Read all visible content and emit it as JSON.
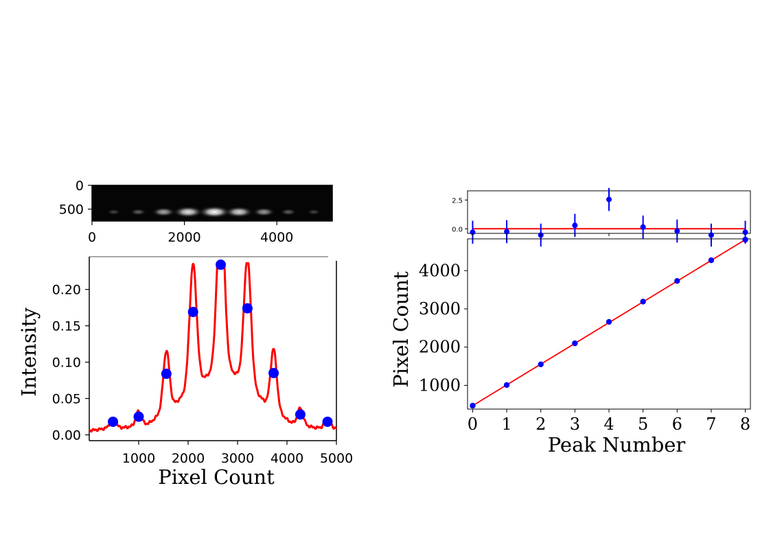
{
  "chart_data": [
    {
      "type": "image",
      "panel": "detector-image",
      "xticks": [
        "0",
        "2000",
        "4000"
      ],
      "yticks": [
        "0",
        "500"
      ],
      "xlim": [
        0,
        5200
      ],
      "ylim": [
        0,
        750
      ],
      "spots": [
        {
          "x": 470,
          "brightness": 0.25
        },
        {
          "x": 1000,
          "brightness": 0.35
        },
        {
          "x": 1550,
          "brightness": 0.65
        },
        {
          "x": 2080,
          "brightness": 0.9
        },
        {
          "x": 2650,
          "brightness": 1.0
        },
        {
          "x": 3180,
          "brightness": 0.85
        },
        {
          "x": 3720,
          "brightness": 0.6
        },
        {
          "x": 4250,
          "brightness": 0.35
        },
        {
          "x": 4800,
          "brightness": 0.25
        }
      ]
    },
    {
      "type": "line",
      "panel": "intensity-profile",
      "xlabel": "Pixel Count",
      "ylabel": "Intensity",
      "xlim": [
        0,
        5000
      ],
      "ylim": [
        -0.008,
        0.245
      ],
      "xticks": [
        "1000",
        "2000",
        "3000",
        "4000",
        "5000"
      ],
      "yticks": [
        "0.00",
        "0.05",
        "0.10",
        "0.15",
        "0.20"
      ],
      "line_color": "#ff0000",
      "marker_color": "#0000ff",
      "peaks": [
        {
          "x": 480,
          "y": 0.018
        },
        {
          "x": 1000,
          "y": 0.025
        },
        {
          "x": 1560,
          "y": 0.084
        },
        {
          "x": 2100,
          "y": 0.169
        },
        {
          "x": 2660,
          "y": 0.234
        },
        {
          "x": 3200,
          "y": 0.174
        },
        {
          "x": 3730,
          "y": 0.085
        },
        {
          "x": 4270,
          "y": 0.028
        },
        {
          "x": 4820,
          "y": 0.018
        }
      ]
    },
    {
      "type": "scatter",
      "panel": "residuals",
      "xlim": [
        -0.15,
        8.15
      ],
      "ylim": [
        -0.4,
        3.3
      ],
      "yticks": [
        "0.0",
        "2.5"
      ],
      "fit_color": "#ff0000",
      "marker_color": "#0000ff",
      "points": [
        {
          "x": 0,
          "y": -0.3,
          "err": 1.0
        },
        {
          "x": 1,
          "y": -0.25,
          "err": 1.0
        },
        {
          "x": 2,
          "y": -0.55,
          "err": 1.0
        },
        {
          "x": 3,
          "y": 0.3,
          "err": 1.0
        },
        {
          "x": 4,
          "y": 2.55,
          "err": 1.0
        },
        {
          "x": 5,
          "y": 0.15,
          "err": 1.0
        },
        {
          "x": 6,
          "y": -0.2,
          "err": 1.0
        },
        {
          "x": 7,
          "y": -0.55,
          "err": 1.0
        },
        {
          "x": 8,
          "y": -0.3,
          "err": 1.0
        }
      ]
    },
    {
      "type": "scatter",
      "panel": "peak-fit",
      "xlabel": "Peak Number",
      "ylabel": "Pixel Count",
      "xlim": [
        -0.15,
        8.15
      ],
      "ylim": [
        380,
        4830
      ],
      "xticks": [
        "0",
        "1",
        "2",
        "3",
        "4",
        "5",
        "6",
        "7",
        "8"
      ],
      "yticks": [
        "1000",
        "2000",
        "3000",
        "4000"
      ],
      "fit_color": "#ff0000",
      "marker_color": "#0000ff",
      "points": [
        {
          "x": 0,
          "y": 470
        },
        {
          "x": 1,
          "y": 1010
        },
        {
          "x": 2,
          "y": 1550
        },
        {
          "x": 3,
          "y": 2100
        },
        {
          "x": 4,
          "y": 2660
        },
        {
          "x": 5,
          "y": 3190
        },
        {
          "x": 6,
          "y": 3730
        },
        {
          "x": 7,
          "y": 4270
        },
        {
          "x": 8,
          "y": 4810
        }
      ],
      "fit": {
        "intercept": 470,
        "slope": 542.5
      }
    }
  ]
}
